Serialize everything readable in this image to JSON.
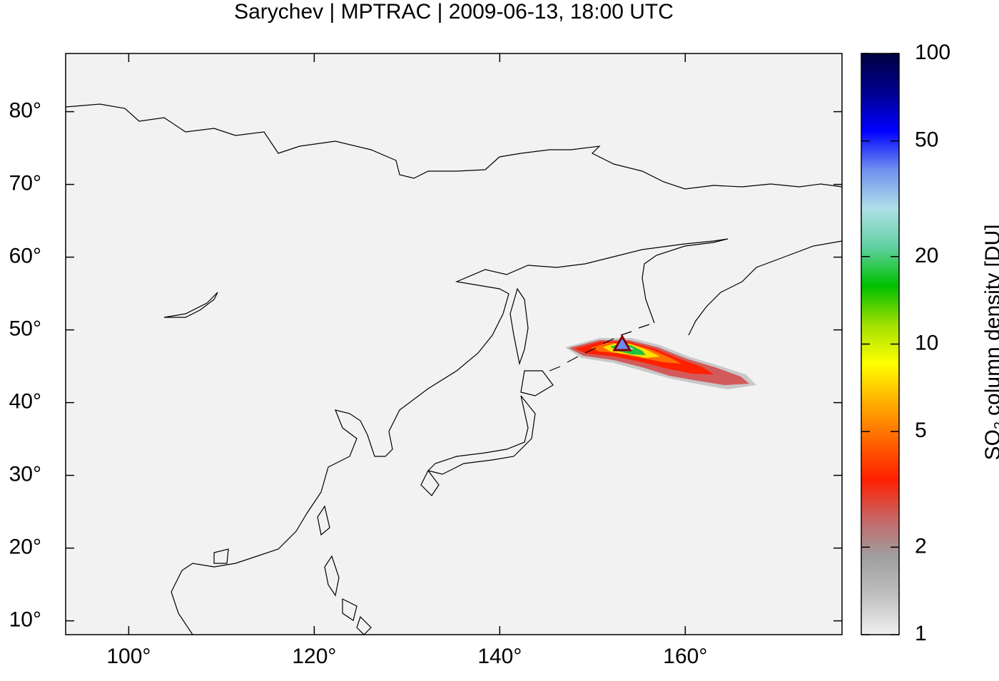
{
  "chart_data": {
    "type": "map",
    "title": "Sarychev | MPTRAC | 2009-06-13, 18:00 UTC",
    "background": "#f2f2f2",
    "xlim": [
      93.2,
      176.9
    ],
    "ylim": [
      8.1,
      88.0
    ],
    "xticks": [
      {
        "value": 100,
        "label": "100°"
      },
      {
        "value": 120,
        "label": "120°"
      },
      {
        "value": 140,
        "label": "140°"
      },
      {
        "value": 160,
        "label": "160°"
      }
    ],
    "yticks": [
      {
        "value": 10,
        "label": "10°"
      },
      {
        "value": 20,
        "label": "20°"
      },
      {
        "value": 30,
        "label": "30°"
      },
      {
        "value": 40,
        "label": "40°"
      },
      {
        "value": 50,
        "label": "50°"
      },
      {
        "value": 60,
        "label": "60°"
      },
      {
        "value": 70,
        "label": "70°"
      },
      {
        "value": 80,
        "label": "80°"
      }
    ],
    "volcano": {
      "lon": 153.2,
      "lat": 48.1,
      "color": "#800000",
      "fill": "#6a8cf0"
    },
    "colorbar": {
      "label": {
        "main": "SO",
        "subscript": "2",
        "rest": "column density [DU]"
      },
      "scale": "log",
      "lim": [
        1,
        100
      ],
      "ticks": [
        1,
        2,
        5,
        10,
        20,
        50,
        100
      ],
      "colors": [
        "#f0f0f0",
        "#c0c0c0",
        "#a0a0a0",
        "#c86464",
        "#ff2000",
        "#ff6400",
        "#ffb000",
        "#ffff00",
        "#a0e000",
        "#00c000",
        "#60d0a0",
        "#b0e0e8",
        "#7090f0",
        "#0000ff",
        "#000090",
        "#000040"
      ]
    }
  }
}
